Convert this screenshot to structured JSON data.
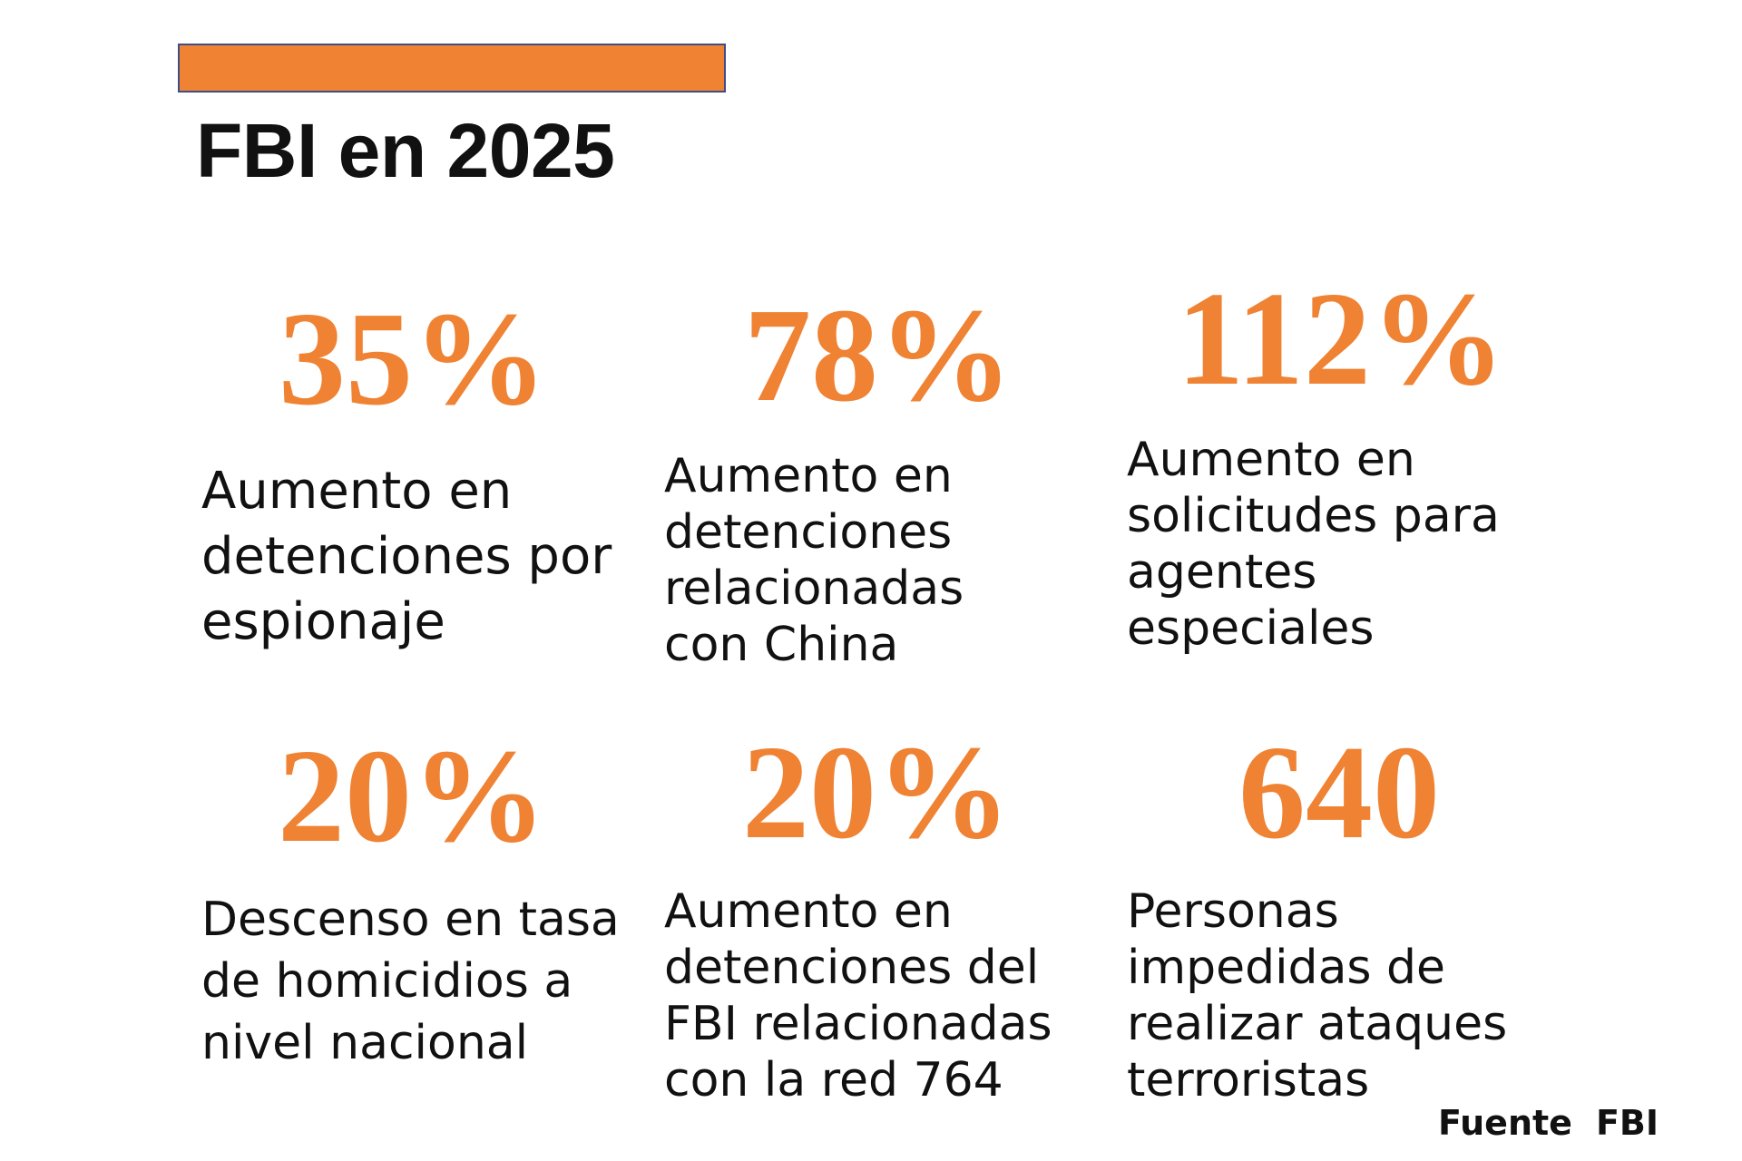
{
  "header": {
    "title": "FBI en 2025"
  },
  "stats": [
    {
      "value": "35%",
      "description_lines": [
        "Aumento en",
        "detenciones por",
        "espionaje"
      ]
    },
    {
      "value": "78%",
      "description_lines": [
        "Aumento en",
        "detenciones",
        "relacionadas",
        "con China"
      ]
    },
    {
      "value": "112%",
      "description_lines": [
        "Aumento en",
        "solicitudes para",
        "agentes",
        "especiales"
      ]
    },
    {
      "value": "20%",
      "description_lines": [
        "Descenso en tasa",
        "de homicidios a",
        "nivel nacional"
      ]
    },
    {
      "value": "20%",
      "description_lines": [
        "Aumento en",
        "detenciones del",
        "FBI relacionadas",
        "con la red 764"
      ]
    },
    {
      "value": "640",
      "description_lines": [
        "Personas",
        "impedidas de",
        "realizar ataques",
        "terroristas"
      ]
    }
  ],
  "source": {
    "label": "Fuente",
    "name": "FBI"
  },
  "colors": {
    "accent": "#ef8233",
    "accent_border": "#3d4f86",
    "text": "#111111",
    "background": "#ffffff"
  }
}
